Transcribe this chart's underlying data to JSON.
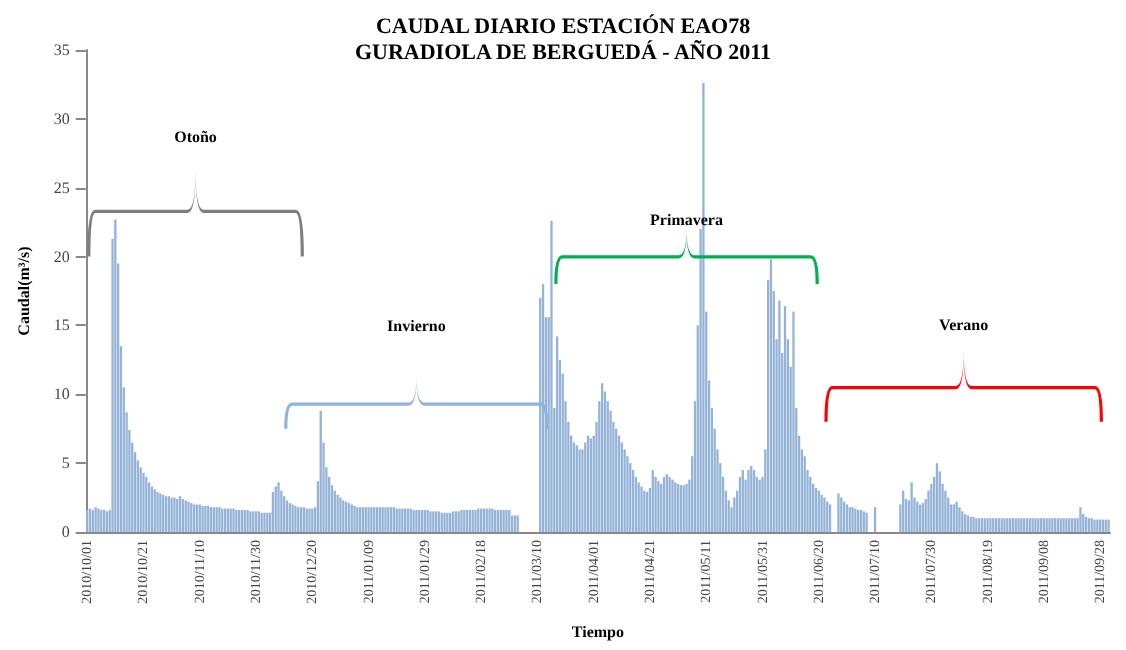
{
  "chart_data": {
    "type": "bar",
    "title": "CAUDAL DIARIO ESTACIÓN EAO78\nGURADIOLA DE BERGUEDÁ - AÑO 2011",
    "xlabel": "Tiempo",
    "ylabel": "Caudal(m³/s)",
    "annotations": [
      "Otoño",
      "Invierno",
      "Primavera",
      "Verano"
    ],
    "categories": [
      "2010/10/01",
      null,
      null,
      null,
      null,
      null,
      null,
      null,
      null,
      null,
      null,
      null,
      null,
      null,
      null,
      null,
      null,
      null,
      null,
      null,
      "2010/10/21",
      null,
      null,
      null,
      null,
      null,
      null,
      null,
      null,
      null,
      null,
      null,
      null,
      null,
      null,
      null,
      null,
      null,
      null,
      null,
      "2010/11/10",
      null,
      null,
      null,
      null,
      null,
      null,
      null,
      null,
      null,
      null,
      null,
      null,
      null,
      null,
      null,
      null,
      null,
      null,
      null,
      "2010/11/30",
      null,
      null,
      null,
      null,
      null,
      null,
      null,
      null,
      null,
      null,
      null,
      null,
      null,
      null,
      null,
      null,
      null,
      null,
      null,
      "2010/12/20",
      null,
      null,
      null,
      null,
      null,
      null,
      null,
      null,
      null,
      null,
      null,
      null,
      null,
      null,
      null,
      null,
      null,
      null,
      null,
      "2011/01/09",
      null,
      null,
      null,
      null,
      null,
      null,
      null,
      null,
      null,
      null,
      null,
      null,
      null,
      null,
      null,
      null,
      null,
      null,
      null,
      "2011/01/29",
      null,
      null,
      null,
      null,
      null,
      null,
      null,
      null,
      null,
      null,
      null,
      null,
      null,
      null,
      null,
      null,
      null,
      null,
      null,
      "2011/02/18",
      null,
      null,
      null,
      null,
      null,
      null,
      null,
      null,
      null,
      null,
      null,
      null,
      null,
      null,
      null,
      null,
      null,
      null,
      null,
      "2011/03/10",
      null,
      null,
      null,
      null,
      null,
      null,
      null,
      null,
      null,
      null,
      null,
      null,
      null,
      null,
      null,
      null,
      null,
      null,
      null,
      "2011/04/01",
      null,
      null,
      null,
      null,
      null,
      null,
      null,
      null,
      null,
      null,
      null,
      null,
      null,
      null,
      null,
      null,
      null,
      null,
      null,
      "2011/04/21",
      null,
      null,
      null,
      null,
      null,
      null,
      null,
      null,
      null,
      null,
      null,
      null,
      null,
      null,
      null,
      null,
      null,
      null,
      null,
      "2011/05/11",
      null,
      null,
      null,
      null,
      null,
      null,
      null,
      null,
      null,
      null,
      null,
      null,
      null,
      null,
      null,
      null,
      null,
      null,
      null,
      "2011/05/31",
      null,
      null,
      null,
      null,
      null,
      null,
      null,
      null,
      null,
      null,
      null,
      null,
      null,
      null,
      null,
      null,
      null,
      null,
      null,
      "2011/06/20",
      null,
      null,
      null,
      null,
      null,
      null,
      null,
      null,
      null,
      null,
      null,
      null,
      null,
      null,
      null,
      null,
      null,
      null,
      null,
      "2011/07/10",
      null,
      null,
      null,
      null,
      null,
      null,
      null,
      null,
      null,
      null,
      null,
      null,
      null,
      null,
      null,
      null,
      null,
      null,
      null,
      "2011/07/30",
      null,
      null,
      null,
      null,
      null,
      null,
      null,
      null,
      null,
      null,
      null,
      null,
      null,
      null,
      null,
      null,
      null,
      null,
      null,
      "2011/08/19",
      null,
      null,
      null,
      null,
      null,
      null,
      null,
      null,
      null,
      null,
      null,
      null,
      null,
      null,
      null,
      null,
      null,
      null,
      null,
      "2011/09/08",
      null,
      null,
      null,
      null,
      null,
      null,
      null,
      null,
      null,
      null,
      null,
      null,
      null,
      null,
      null,
      null,
      null,
      null,
      null,
      "2011/09/28",
      null,
      null,
      null
    ],
    "values": [
      1.6,
      1.7,
      1.6,
      1.8,
      1.7,
      1.6,
      1.6,
      1.5,
      1.6,
      21.3,
      22.7,
      19.5,
      13.5,
      10.5,
      8.7,
      7.4,
      6.5,
      5.8,
      5.2,
      4.7,
      4.3,
      4.0,
      3.6,
      3.3,
      3.1,
      2.9,
      2.8,
      2.7,
      2.6,
      2.6,
      2.5,
      2.5,
      2.4,
      2.6,
      2.4,
      2.3,
      2.2,
      2.1,
      2.0,
      2.0,
      2.0,
      1.9,
      1.9,
      1.9,
      1.8,
      1.8,
      1.8,
      1.8,
      1.7,
      1.7,
      1.7,
      1.7,
      1.7,
      1.6,
      1.6,
      1.6,
      1.6,
      1.6,
      1.5,
      1.5,
      1.5,
      1.5,
      1.4,
      1.4,
      1.4,
      1.4,
      2.9,
      3.3,
      3.6,
      3.0,
      2.6,
      2.3,
      2.1,
      2.0,
      1.9,
      1.8,
      1.8,
      1.8,
      1.7,
      1.7,
      1.7,
      1.8,
      3.7,
      8.8,
      6.5,
      4.7,
      4.0,
      3.4,
      3.0,
      2.7,
      2.5,
      2.3,
      2.2,
      2.1,
      2.0,
      1.9,
      1.8,
      1.8,
      1.8,
      1.8,
      1.8,
      1.8,
      1.8,
      1.8,
      1.8,
      1.8,
      1.8,
      1.8,
      1.8,
      1.8,
      1.7,
      1.7,
      1.7,
      1.7,
      1.7,
      1.7,
      1.6,
      1.6,
      1.6,
      1.6,
      1.6,
      1.6,
      1.5,
      1.5,
      1.5,
      1.5,
      1.4,
      1.4,
      1.4,
      1.4,
      1.5,
      1.5,
      1.5,
      1.6,
      1.6,
      1.6,
      1.6,
      1.6,
      1.6,
      1.7,
      1.7,
      1.7,
      1.7,
      1.7,
      1.7,
      1.6,
      1.6,
      1.6,
      1.6,
      1.6,
      1.6,
      1.2,
      1.2,
      1.2,
      null,
      null,
      null,
      null,
      null,
      null,
      null,
      17.0,
      18.0,
      15.6,
      15.6,
      22.6,
      9.0,
      14.2,
      12.5,
      11.5,
      9.5,
      8.0,
      7.0,
      6.5,
      6.3,
      6.0,
      6.0,
      6.5,
      7.0,
      6.8,
      7.0,
      8.0,
      9.5,
      10.8,
      10.2,
      9.5,
      8.8,
      8.0,
      7.5,
      7.0,
      6.5,
      6.0,
      5.5,
      5.0,
      4.5,
      4.0,
      3.6,
      3.3,
      3.0,
      2.9,
      3.2,
      4.5,
      4.0,
      3.7,
      3.5,
      4.0,
      4.2,
      4.0,
      3.8,
      3.6,
      3.5,
      3.4,
      3.4,
      3.5,
      3.8,
      5.5,
      9.5,
      15.0,
      22.0,
      32.6,
      16.0,
      11.0,
      9.0,
      7.5,
      6.0,
      5.0,
      4.0,
      3.0,
      2.3,
      1.8,
      2.5,
      3.0,
      4.0,
      4.5,
      3.8,
      4.5,
      4.8,
      4.5,
      4.0,
      3.8,
      4.0,
      6.0,
      18.3,
      19.8,
      17.5,
      14.0,
      16.8,
      13.0,
      16.4,
      14.0,
      12.0,
      16.0,
      9.0,
      7.0,
      6.0,
      5.5,
      4.5,
      4.0,
      3.5,
      3.2,
      3.0,
      2.7,
      2.5,
      2.2,
      2.0,
      null,
      null,
      2.8,
      2.5,
      2.2,
      2.0,
      1.8,
      1.8,
      1.7,
      1.6,
      1.6,
      1.5,
      1.4,
      null,
      null,
      1.8,
      null,
      null,
      null,
      null,
      null,
      null,
      null,
      null,
      2.0,
      3.0,
      2.4,
      2.3,
      3.6,
      2.5,
      2.2,
      2.0,
      2.1,
      2.4,
      3.0,
      3.5,
      4.0,
      5.0,
      4.4,
      3.5,
      3.0,
      2.5,
      2.0,
      2.0,
      2.2,
      1.8,
      1.5,
      1.3,
      1.2,
      1.1,
      1.1,
      1.0,
      1.0,
      1.0,
      1.0,
      1.0,
      1.0,
      1.0,
      1.0,
      1.0,
      1.0,
      1.0,
      1.0,
      1.0,
      1.0,
      1.0,
      1.0,
      1.0,
      1.0,
      1.0,
      1.0,
      1.0,
      1.0,
      1.0,
      1.0,
      1.0,
      1.0,
      1.0,
      1.0,
      1.0,
      1.0,
      1.0,
      1.0,
      1.0,
      1.0,
      1.0,
      1.0,
      1.0,
      1.8,
      1.3,
      1.1,
      1.0,
      1.0,
      0.9,
      0.9,
      0.9,
      0.9,
      0.9,
      0.9
    ],
    "color": "#95b3d7",
    "ylim": [
      0,
      35
    ],
    "yticks": [
      0,
      5,
      10,
      15,
      20,
      25,
      30,
      35
    ]
  }
}
